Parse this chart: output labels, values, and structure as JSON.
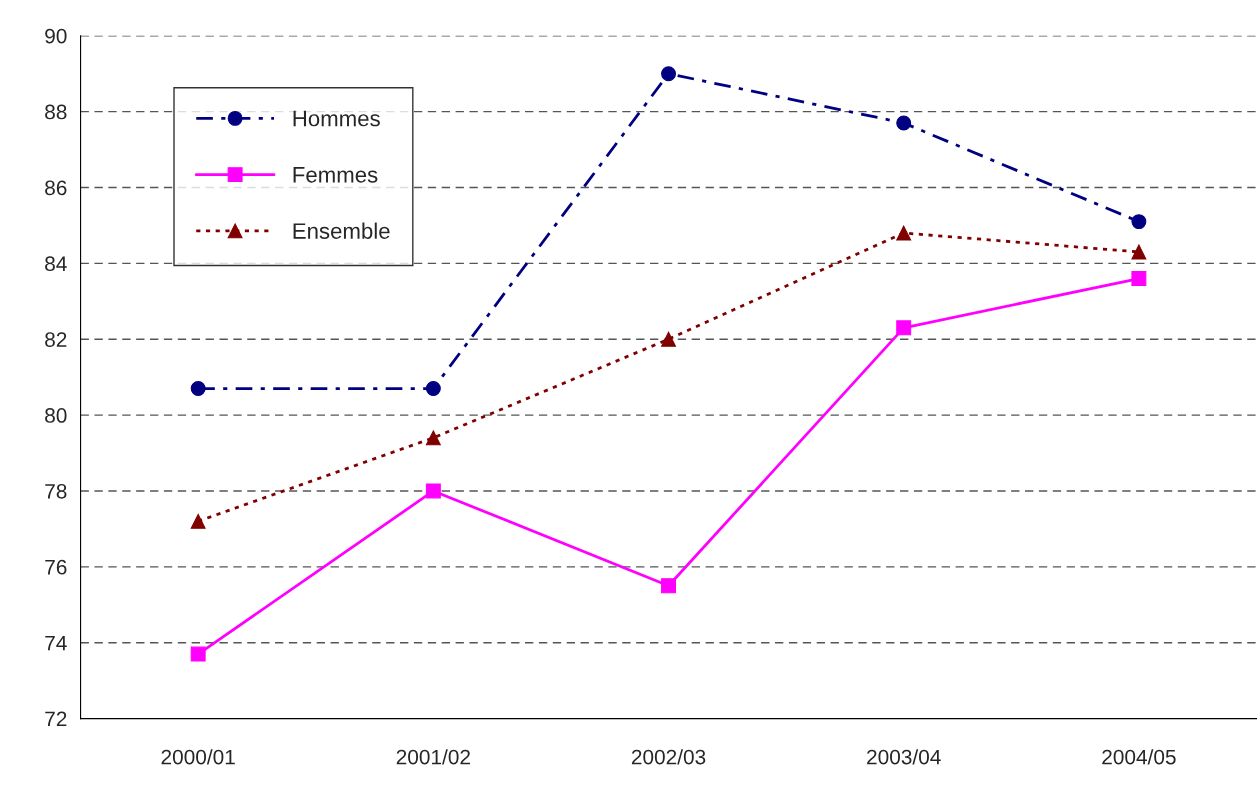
{
  "chart_data": {
    "type": "line",
    "categories": [
      "2000/01",
      "2001/02",
      "2002/03",
      "2003/04",
      "2004/05"
    ],
    "series": [
      {
        "name": "Hommes",
        "color": "#000080",
        "marker": "circle",
        "line_style": "dashed",
        "values": [
          80.7,
          80.7,
          89.0,
          87.7,
          85.1
        ]
      },
      {
        "name": "Femmes",
        "color": "#ff00ff",
        "marker": "square",
        "line_style": "solid",
        "values": [
          73.7,
          78.0,
          75.5,
          82.3,
          83.6
        ]
      },
      {
        "name": "Ensemble",
        "color": "#800000",
        "marker": "triangle",
        "line_style": "dotted",
        "values": [
          77.2,
          79.4,
          82.0,
          84.8,
          84.3
        ]
      }
    ],
    "ylim": [
      72,
      90
    ],
    "yticks": [
      72,
      74,
      76,
      78,
      80,
      82,
      84,
      86,
      88,
      90
    ],
    "grid": "y",
    "legend": "top left"
  }
}
